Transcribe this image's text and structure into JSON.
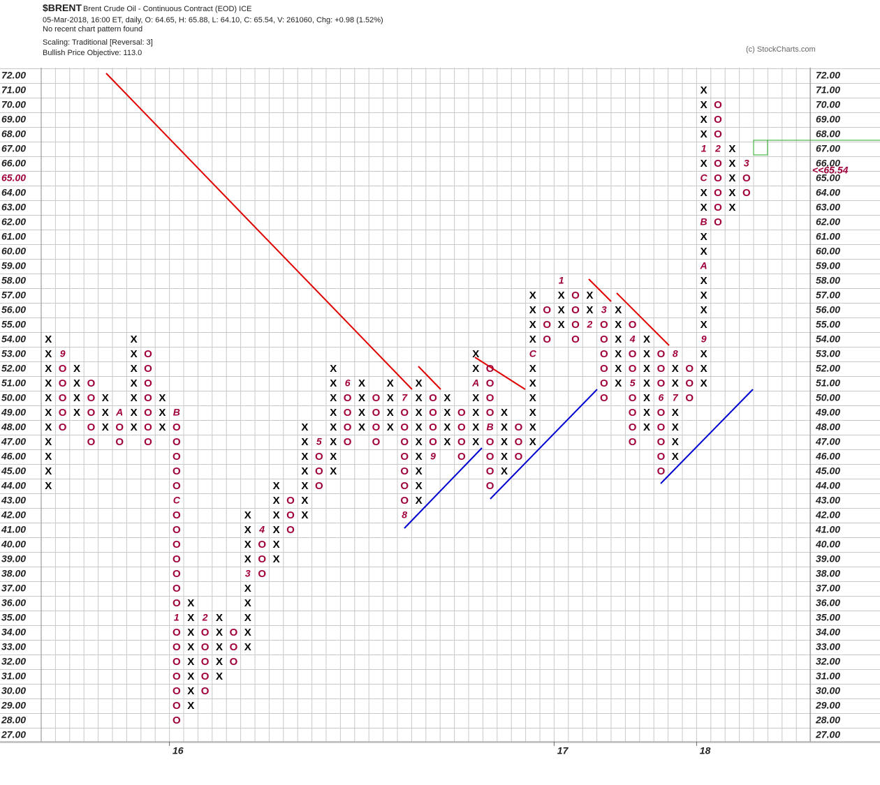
{
  "chart_data": {
    "type": "pnf",
    "symbol": "$BRENT",
    "name": "Brent Crude Oil - Continuous Contract (EOD)  ICE",
    "info": "05-Mar-2018, 16:00 ET, daily, O: 64.65, H: 65.88, L: 64.10, C: 65.54, V: 261060, Chg: +0.98 (1.52%)",
    "pattern": "No recent chart pattern found",
    "scaling": "Scaling: Traditional [Reversal: 3]",
    "objective": "Bullish Price Objective: 113.0",
    "credit": "(c) StockCharts.com",
    "x_color": "#000000",
    "o_color": "#a0003c",
    "grid": true,
    "last": {
      "value": 65.54,
      "label": "<<65.54"
    },
    "ylim": [
      27,
      72
    ],
    "yticks": [
      {
        "value": 72,
        "label": "72.00"
      },
      {
        "value": 71,
        "label": "71.00"
      },
      {
        "value": 70,
        "label": "70.00"
      },
      {
        "value": 69,
        "label": "69.00"
      },
      {
        "value": 68,
        "label": "68.00"
      },
      {
        "value": 67,
        "label": "67.00"
      },
      {
        "value": 66,
        "label": "66.00"
      },
      {
        "value": 65,
        "label": "65.00"
      },
      {
        "value": 64,
        "label": "64.00"
      },
      {
        "value": 63,
        "label": "63.00"
      },
      {
        "value": 62,
        "label": "62.00"
      },
      {
        "value": 61,
        "label": "61.00"
      },
      {
        "value": 60,
        "label": "60.00"
      },
      {
        "value": 59,
        "label": "59.00"
      },
      {
        "value": 58,
        "label": "58.00"
      },
      {
        "value": 57,
        "label": "57.00"
      },
      {
        "value": 56,
        "label": "56.00"
      },
      {
        "value": 55,
        "label": "55.00"
      },
      {
        "value": 54,
        "label": "54.00"
      },
      {
        "value": 53,
        "label": "53.00"
      },
      {
        "value": 52,
        "label": "52.00"
      },
      {
        "value": 51,
        "label": "51.00"
      },
      {
        "value": 50,
        "label": "50.00"
      },
      {
        "value": 49,
        "label": "49.00"
      },
      {
        "value": 48,
        "label": "48.00"
      },
      {
        "value": 47,
        "label": "47.00"
      },
      {
        "value": 46,
        "label": "46.00"
      },
      {
        "value": 45,
        "label": "45.00"
      },
      {
        "value": 44,
        "label": "44.00"
      },
      {
        "value": 43,
        "label": "43.00"
      },
      {
        "value": 42,
        "label": "42.00"
      },
      {
        "value": 41,
        "label": "41.00"
      },
      {
        "value": 40,
        "label": "40.00"
      },
      {
        "value": 39,
        "label": "39.00"
      },
      {
        "value": 38,
        "label": "38.00"
      },
      {
        "value": 37,
        "label": "37.00"
      },
      {
        "value": 36,
        "label": "36.00"
      },
      {
        "value": 35,
        "label": "35.00"
      },
      {
        "value": 34,
        "label": "34.00"
      },
      {
        "value": 33,
        "label": "33.00"
      },
      {
        "value": 32,
        "label": "32.00"
      },
      {
        "value": 31,
        "label": "31.00"
      },
      {
        "value": 30,
        "label": "30.00"
      },
      {
        "value": 29,
        "label": "29.00"
      },
      {
        "value": 28,
        "label": "28.00"
      },
      {
        "value": 27,
        "label": "27.00"
      }
    ],
    "columns": [
      {
        "type": "X",
        "low": 44,
        "high": 54
      },
      {
        "type": "O",
        "low": 48,
        "high": 53,
        "months": [
          {
            "value": 53,
            "label": "9"
          }
        ]
      },
      {
        "type": "X",
        "low": 49,
        "high": 52
      },
      {
        "type": "O",
        "low": 47,
        "high": 51
      },
      {
        "type": "X",
        "low": 48,
        "high": 50
      },
      {
        "type": "O",
        "low": 47,
        "high": 49,
        "months": [
          {
            "value": 49,
            "label": "A"
          }
        ]
      },
      {
        "type": "X",
        "low": 48,
        "high": 54
      },
      {
        "type": "O",
        "low": 47,
        "high": 53
      },
      {
        "type": "X",
        "low": 48,
        "high": 50
      },
      {
        "type": "O",
        "low": 28,
        "high": 49,
        "months": [
          {
            "value": 49,
            "label": "B"
          },
          {
            "value": 43,
            "label": "C"
          },
          {
            "value": 35,
            "label": "1"
          }
        ],
        "year": "16"
      },
      {
        "type": "X",
        "low": 29,
        "high": 36
      },
      {
        "type": "O",
        "low": 30,
        "high": 35,
        "months": [
          {
            "value": 35,
            "label": "2"
          }
        ]
      },
      {
        "type": "X",
        "low": 31,
        "high": 35
      },
      {
        "type": "O",
        "low": 32,
        "high": 34
      },
      {
        "type": "X",
        "low": 33,
        "high": 42,
        "months": [
          {
            "value": 38,
            "label": "3"
          }
        ]
      },
      {
        "type": "O",
        "low": 38,
        "high": 41,
        "months": [
          {
            "value": 41,
            "label": "4"
          }
        ]
      },
      {
        "type": "X",
        "low": 39,
        "high": 44
      },
      {
        "type": "O",
        "low": 41,
        "high": 43
      },
      {
        "type": "X",
        "low": 42,
        "high": 48
      },
      {
        "type": "O",
        "low": 44,
        "high": 47,
        "months": [
          {
            "value": 47,
            "label": "5"
          }
        ]
      },
      {
        "type": "X",
        "low": 45,
        "high": 52
      },
      {
        "type": "O",
        "low": 47,
        "high": 51,
        "months": [
          {
            "value": 51,
            "label": "6"
          }
        ]
      },
      {
        "type": "X",
        "low": 48,
        "high": 51
      },
      {
        "type": "O",
        "low": 47,
        "high": 50
      },
      {
        "type": "X",
        "low": 48,
        "high": 51
      },
      {
        "type": "O",
        "low": 42,
        "high": 50,
        "months": [
          {
            "value": 50,
            "label": "7"
          },
          {
            "value": 42,
            "label": "8"
          }
        ]
      },
      {
        "type": "X",
        "low": 43,
        "high": 51
      },
      {
        "type": "O",
        "low": 46,
        "high": 50,
        "months": [
          {
            "value": 46,
            "label": "9"
          }
        ]
      },
      {
        "type": "X",
        "low": 47,
        "high": 50
      },
      {
        "type": "O",
        "low": 46,
        "high": 49
      },
      {
        "type": "X",
        "low": 47,
        "high": 53,
        "months": [
          {
            "value": 51,
            "label": "A"
          }
        ]
      },
      {
        "type": "O",
        "low": 44,
        "high": 52,
        "months": [
          {
            "value": 48,
            "label": "B"
          }
        ]
      },
      {
        "type": "X",
        "low": 45,
        "high": 49
      },
      {
        "type": "O",
        "low": 46,
        "high": 48
      },
      {
        "type": "X",
        "low": 47,
        "high": 57,
        "months": [
          {
            "value": 53,
            "label": "C"
          }
        ]
      },
      {
        "type": "O",
        "low": 54,
        "high": 56
      },
      {
        "type": "X",
        "low": 55,
        "high": 58,
        "months": [
          {
            "value": 58,
            "label": "1"
          }
        ],
        "year": "17"
      },
      {
        "type": "O",
        "low": 54,
        "high": 57
      },
      {
        "type": "X",
        "low": 55,
        "high": 57,
        "months": [
          {
            "value": 55,
            "label": "2"
          }
        ]
      },
      {
        "type": "O",
        "low": 50,
        "high": 56,
        "months": [
          {
            "value": 56,
            "label": "3"
          }
        ]
      },
      {
        "type": "X",
        "low": 51,
        "high": 56
      },
      {
        "type": "O",
        "low": 47,
        "high": 55,
        "months": [
          {
            "value": 54,
            "label": "4"
          },
          {
            "value": 51,
            "label": "5"
          }
        ]
      },
      {
        "type": "X",
        "low": 48,
        "high": 54
      },
      {
        "type": "O",
        "low": 45,
        "high": 53,
        "months": [
          {
            "value": 50,
            "label": "6"
          }
        ]
      },
      {
        "type": "X",
        "low": 46,
        "high": 53,
        "months": [
          {
            "value": 50,
            "label": "7"
          },
          {
            "value": 53,
            "label": "8"
          }
        ]
      },
      {
        "type": "O",
        "low": 50,
        "high": 52
      },
      {
        "type": "X",
        "low": 51,
        "high": 71,
        "months": [
          {
            "value": 54,
            "label": "9"
          },
          {
            "value": 59,
            "label": "A"
          },
          {
            "value": 62,
            "label": "B"
          },
          {
            "value": 65,
            "label": "C"
          },
          {
            "value": 67,
            "label": "1"
          }
        ],
        "year": "18"
      },
      {
        "type": "O",
        "low": 62,
        "high": 70,
        "months": [
          {
            "value": 67,
            "label": "2"
          }
        ]
      },
      {
        "type": "X",
        "low": 63,
        "high": 67
      },
      {
        "type": "O",
        "low": 64,
        "high": 66,
        "months": [
          {
            "value": 66,
            "label": "3"
          }
        ]
      }
    ]
  }
}
